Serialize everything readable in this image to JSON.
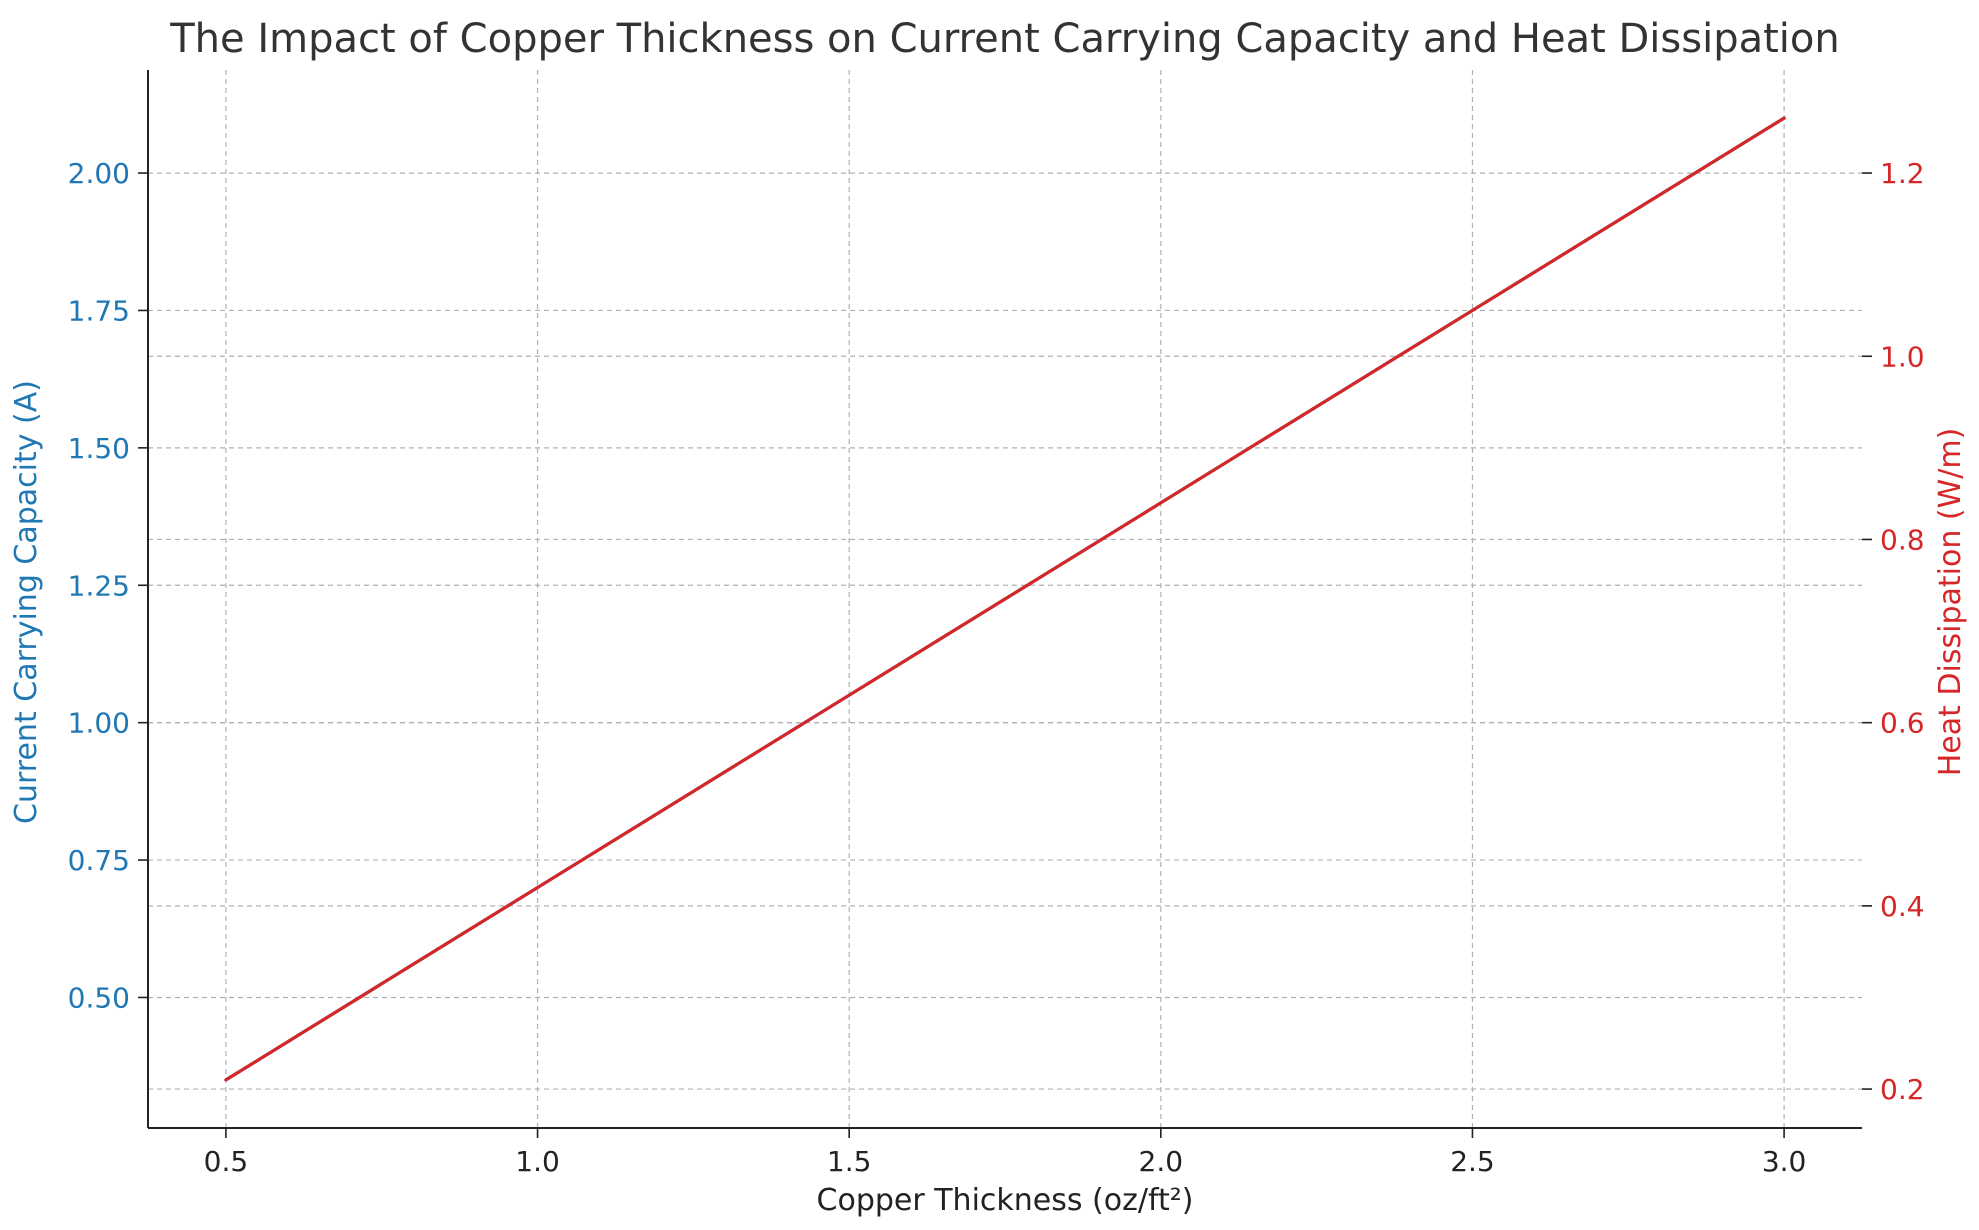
{
  "chart_data": {
    "type": "line",
    "title": "The Impact of Copper Thickness on Current Carrying Capacity and Heat Dissipation",
    "xlabel": "Copper Thickness (oz/ft²)",
    "ylabel_left": "Current Carrying Capacity (A)",
    "ylabel_right": "Heat Dissipation (W/m)",
    "x": [
      0.5,
      1.0,
      1.5,
      2.0,
      2.5,
      3.0
    ],
    "series": [
      {
        "axis": "left",
        "color": "#1f77b4",
        "values": [
          0.35,
          0.7,
          1.05,
          1.4,
          1.75,
          2.1
        ]
      },
      {
        "axis": "right",
        "color": "#d62728",
        "values": [
          0.21,
          0.42,
          0.63,
          0.84,
          1.05,
          1.26
        ]
      }
    ],
    "xlim": [
      0.375,
      3.125
    ],
    "ylim_left": [
      0.2625,
      2.1875
    ],
    "ylim_right": [
      0.1575,
      1.3125
    ],
    "xticks": [
      "0.5",
      "1.0",
      "1.5",
      "2.0",
      "2.5",
      "3.0"
    ],
    "yticks_left": [
      "0.50",
      "0.75",
      "1.00",
      "1.25",
      "1.50",
      "1.75",
      "2.00"
    ],
    "yticks_right": [
      "0.2",
      "0.4",
      "0.6",
      "0.8",
      "1.0",
      "1.2"
    ],
    "grid": true,
    "colors": {
      "left_axis": "#1f77b4",
      "right_axis": "#d62728",
      "grid": "#b0b0b0"
    }
  }
}
